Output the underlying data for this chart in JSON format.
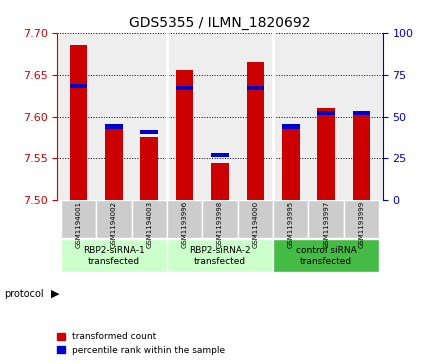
{
  "title": "GDS5355 / ILMN_1820692",
  "samples": [
    "GSM1194001",
    "GSM1194002",
    "GSM1194003",
    "GSM1193996",
    "GSM1193998",
    "GSM1194000",
    "GSM1193995",
    "GSM1193997",
    "GSM1193999"
  ],
  "red_values": [
    7.685,
    7.585,
    7.575,
    7.655,
    7.545,
    7.665,
    7.585,
    7.61,
    7.605
  ],
  "blue_values": [
    0.68,
    0.44,
    0.41,
    0.67,
    0.27,
    0.67,
    0.44,
    0.52,
    0.52
  ],
  "ylim_left": [
    7.5,
    7.7
  ],
  "ylim_right": [
    0,
    100
  ],
  "yticks_left": [
    7.5,
    7.55,
    7.6,
    7.65,
    7.7
  ],
  "yticks_right": [
    0,
    25,
    50,
    75,
    100
  ],
  "group_labels": [
    "RBP2-siRNA-1\ntransfected",
    "RBP2-siRNA-2\ntransfected",
    "control siRNA\ntransfected"
  ],
  "group_ranges": [
    [
      0,
      3
    ],
    [
      3,
      6
    ],
    [
      6,
      9
    ]
  ],
  "group_colors": [
    "#ccffcc",
    "#ccffcc",
    "#44bb44"
  ],
  "bar_color_red": "#cc0000",
  "bar_color_blue": "#0000cc",
  "bar_width": 0.5,
  "ylabel_left_color": "#cc0000",
  "ylabel_right_color": "#0000cc",
  "protocol_label": "protocol",
  "legend_red": "transformed count",
  "legend_blue": "percentile rank within the sample",
  "background_plot": "#eeeeee",
  "background_sample": "#cccccc"
}
